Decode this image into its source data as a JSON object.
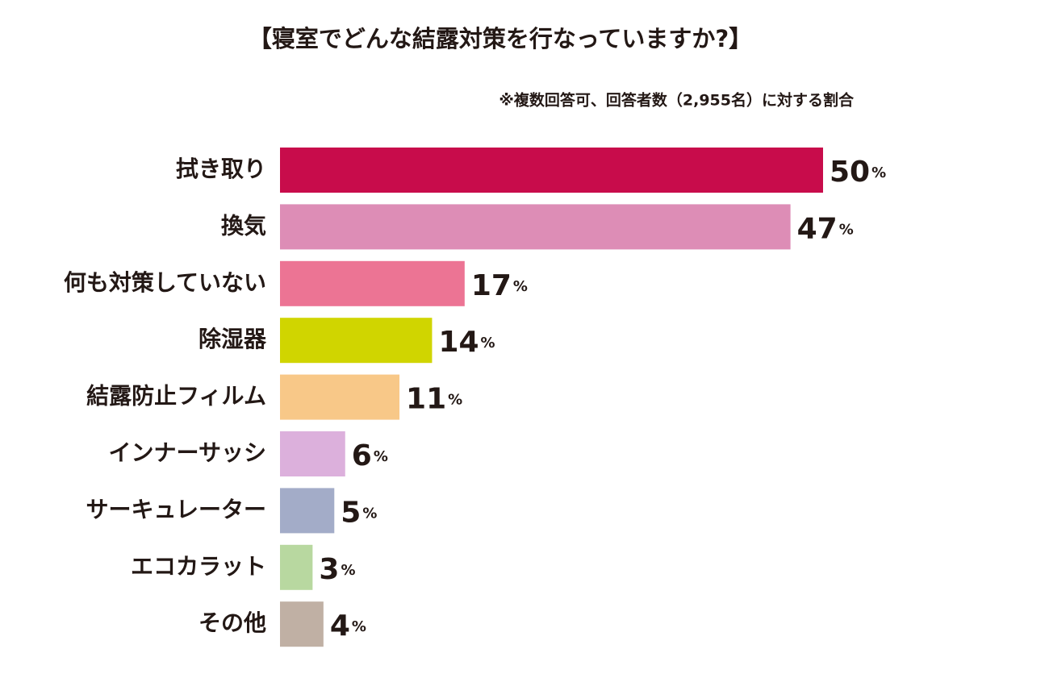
{
  "chart_data": {
    "type": "bar",
    "orientation": "horizontal",
    "title": "【寝室でどんな結露対策を行なっていますか?】",
    "subtitle": "※複数回答可、回答者数（2,955名）に対する割合",
    "categories": [
      "拭き取り",
      "換気",
      "何も対策していない",
      "除湿器",
      "結露防止フィルム",
      "インナーサッシ",
      "サーキュレーター",
      "エコカラット",
      "その他"
    ],
    "values": [
      50,
      47,
      17,
      14,
      11,
      6,
      5,
      3,
      4
    ],
    "value_labels": [
      "50%",
      "47%",
      "17%",
      "14%",
      "11%",
      "6%",
      "5%",
      "3%",
      "4%"
    ],
    "colors": [
      "#c80c4b",
      "#dd8db6",
      "#ec7494",
      "#d0d500",
      "#f8c888",
      "#dcb0dc",
      "#a3acc8",
      "#b8d8a0",
      "#c0b0a4"
    ]
  }
}
